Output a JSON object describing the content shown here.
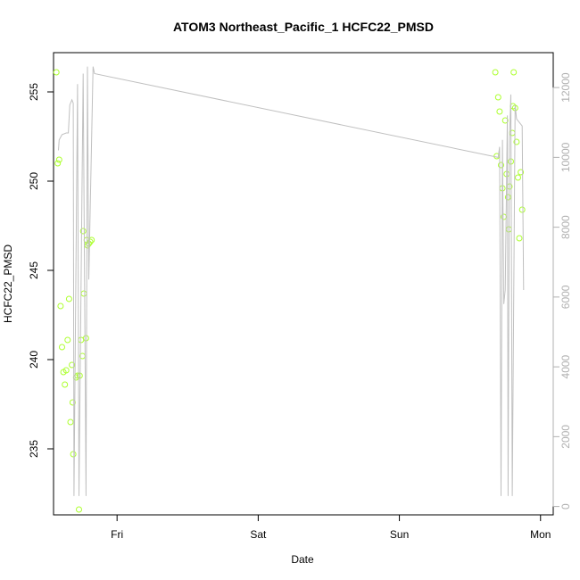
{
  "chart_data": {
    "type": "scatter",
    "title": "ATOM3 Northeast_Pacific_1 HCFC22_PMSD",
    "xlabel": "Date",
    "ylabel": "HCFC22_PMSD",
    "x_axis": {
      "unit": "days",
      "ticks": [
        {
          "label": "Fri",
          "value": 1
        },
        {
          "label": "Sat",
          "value": 2
        },
        {
          "label": "Sun",
          "value": 3
        },
        {
          "label": "Mon",
          "value": 4
        }
      ],
      "range": [
        0.55,
        4.09
      ]
    },
    "y_left": {
      "ticks": [
        235,
        240,
        245,
        250,
        255
      ],
      "range": [
        231.3,
        257.2
      ]
    },
    "y_right": {
      "ticks": [
        0,
        2000,
        4000,
        6000,
        8000,
        10000,
        12000
      ],
      "range": [
        -240,
        13000
      ],
      "color": "#b0b0b0"
    },
    "series": [
      {
        "kind": "points",
        "axis": "left",
        "color": "#adff2f",
        "points": [
          [
            0.57,
            256.1
          ],
          [
            0.58,
            251.0
          ],
          [
            0.59,
            251.2
          ],
          [
            0.6,
            243.0
          ],
          [
            0.61,
            240.7
          ],
          [
            0.62,
            239.3
          ],
          [
            0.63,
            238.6
          ],
          [
            0.64,
            239.4
          ],
          [
            0.65,
            241.1
          ],
          [
            0.66,
            243.4
          ],
          [
            0.67,
            236.5
          ],
          [
            0.68,
            239.7
          ],
          [
            0.685,
            237.6
          ],
          [
            0.69,
            234.7
          ],
          [
            0.71,
            239.0
          ],
          [
            0.72,
            239.1
          ],
          [
            0.73,
            231.6
          ],
          [
            0.735,
            239.1
          ],
          [
            0.745,
            241.1
          ],
          [
            0.755,
            240.2
          ],
          [
            0.76,
            247.2
          ],
          [
            0.765,
            243.7
          ],
          [
            0.78,
            241.2
          ],
          [
            0.785,
            246.7
          ],
          [
            0.79,
            246.4
          ],
          [
            0.8,
            246.5
          ],
          [
            0.81,
            246.6
          ],
          [
            0.82,
            246.7
          ],
          [
            3.68,
            256.1
          ],
          [
            3.69,
            251.4
          ],
          [
            3.7,
            254.7
          ],
          [
            3.71,
            253.9
          ],
          [
            3.72,
            250.9
          ],
          [
            3.73,
            249.6
          ],
          [
            3.74,
            248.0
          ],
          [
            3.75,
            253.4
          ],
          [
            3.76,
            250.4
          ],
          [
            3.77,
            249.1
          ],
          [
            3.775,
            247.3
          ],
          [
            3.78,
            249.7
          ],
          [
            3.79,
            251.1
          ],
          [
            3.8,
            252.7
          ],
          [
            3.805,
            254.2
          ],
          [
            3.81,
            256.1
          ],
          [
            3.82,
            254.1
          ],
          [
            3.83,
            252.2
          ],
          [
            3.84,
            250.2
          ],
          [
            3.85,
            246.8
          ],
          [
            3.86,
            250.5
          ],
          [
            3.87,
            248.4
          ]
        ]
      },
      {
        "kind": "line",
        "axis": "right",
        "color": "#c0c0c0",
        "points": [
          [
            0.585,
            10200
          ],
          [
            0.59,
            10500
          ],
          [
            0.61,
            10650
          ],
          [
            0.64,
            10700
          ],
          [
            0.655,
            10700
          ],
          [
            0.665,
            11500
          ],
          [
            0.68,
            11650
          ],
          [
            0.69,
            11550
          ],
          [
            0.695,
            300
          ],
          [
            0.72,
            12100
          ],
          [
            0.73,
            300
          ],
          [
            0.76,
            12400
          ],
          [
            0.78,
            300
          ],
          [
            0.79,
            12600
          ],
          [
            0.8,
            6500
          ],
          [
            0.83,
            12600
          ],
          [
            0.84,
            12400
          ],
          [
            3.7,
            10000
          ],
          [
            3.71,
            10300
          ],
          [
            3.72,
            300
          ],
          [
            3.73,
            10500
          ],
          [
            3.74,
            5800
          ],
          [
            3.75,
            6200
          ],
          [
            3.765,
            11200
          ],
          [
            3.77,
            300
          ],
          [
            3.78,
            10500
          ],
          [
            3.79,
            11800
          ],
          [
            3.8,
            300
          ],
          [
            3.82,
            11500
          ],
          [
            3.83,
            11100
          ],
          [
            3.87,
            10900
          ],
          [
            3.88,
            6200
          ]
        ]
      }
    ]
  }
}
